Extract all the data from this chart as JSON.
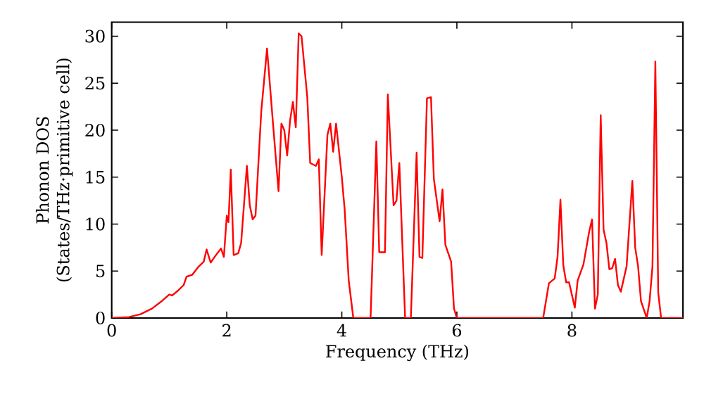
{
  "chart_data": {
    "type": "line",
    "xlabel": "Frequency (THz)",
    "ylabel": "Phonon DOS (States/THz·primitive cell)",
    "xlim": [
      0,
      9.93
    ],
    "ylim": [
      0,
      31.5
    ],
    "xticks": [
      0,
      2,
      4,
      6,
      8
    ],
    "yticks": [
      0,
      5,
      10,
      15,
      20,
      25,
      30
    ],
    "grid": false,
    "marker": "none",
    "line_style": "solid",
    "series": [
      {
        "color": "#ff0000",
        "x": [
          0,
          0.3,
          0.5,
          0.7,
          0.85,
          1.0,
          1.05,
          1.15,
          1.25,
          1.3,
          1.4,
          1.5,
          1.6,
          1.65,
          1.72,
          1.8,
          1.9,
          1.95,
          2.0,
          2.03,
          2.07,
          2.12,
          2.2,
          2.25,
          2.35,
          2.4,
          2.45,
          2.5,
          2.6,
          2.7,
          2.8,
          2.9,
          2.95,
          3.0,
          3.05,
          3.1,
          3.15,
          3.2,
          3.25,
          3.3,
          3.4,
          3.45,
          3.55,
          3.6,
          3.65,
          3.75,
          3.8,
          3.85,
          3.9,
          4.0,
          4.05,
          4.12,
          4.2,
          4.5,
          4.6,
          4.65,
          4.75,
          4.8,
          4.9,
          4.95,
          5.0,
          5.1,
          5.2,
          5.3,
          5.35,
          5.4,
          5.48,
          5.55,
          5.6,
          5.7,
          5.75,
          5.8,
          5.9,
          5.95,
          6.0,
          7.5,
          7.6,
          7.7,
          7.75,
          7.8,
          7.85,
          7.9,
          7.95,
          8.05,
          8.1,
          8.2,
          8.3,
          8.35,
          8.4,
          8.45,
          8.5,
          8.55,
          8.6,
          8.65,
          8.7,
          8.75,
          8.8,
          8.85,
          8.95,
          9.05,
          9.1,
          9.15,
          9.2,
          9.3,
          9.35,
          9.4,
          9.45,
          9.5,
          9.55,
          9.93
        ],
        "values": [
          0,
          0.1,
          0.4,
          1.0,
          1.7,
          2.5,
          2.4,
          2.9,
          3.5,
          4.4,
          4.6,
          5.4,
          6.0,
          7.3,
          5.9,
          6.6,
          7.4,
          6.5,
          10.9,
          10.2,
          15.8,
          6.7,
          6.9,
          8.0,
          16.2,
          12.0,
          10.5,
          10.9,
          22,
          28.7,
          21,
          13.5,
          20.7,
          20,
          17.3,
          21,
          23,
          20.3,
          30.3,
          30,
          23.5,
          16.5,
          16.2,
          16.9,
          6.7,
          19.5,
          20.7,
          17.7,
          20.7,
          15,
          11.5,
          4,
          0,
          0,
          18.8,
          7,
          7,
          23.8,
          12,
          12.5,
          16.5,
          0,
          0,
          17.6,
          6.5,
          6.4,
          23.4,
          23.5,
          14.8,
          10.3,
          13.7,
          7.8,
          6,
          1,
          0,
          0,
          3.7,
          4.2,
          6.5,
          12.6,
          5.6,
          3.8,
          3.8,
          1.1,
          4,
          5.7,
          9.2,
          10.5,
          1,
          2.5,
          21.6,
          9.4,
          8,
          5.2,
          5.3,
          6.3,
          3.5,
          2.8,
          5.5,
          14.6,
          7.5,
          5.5,
          1.8,
          0,
          1.8,
          5.5,
          27.3,
          2.7,
          0,
          0
        ]
      }
    ]
  }
}
